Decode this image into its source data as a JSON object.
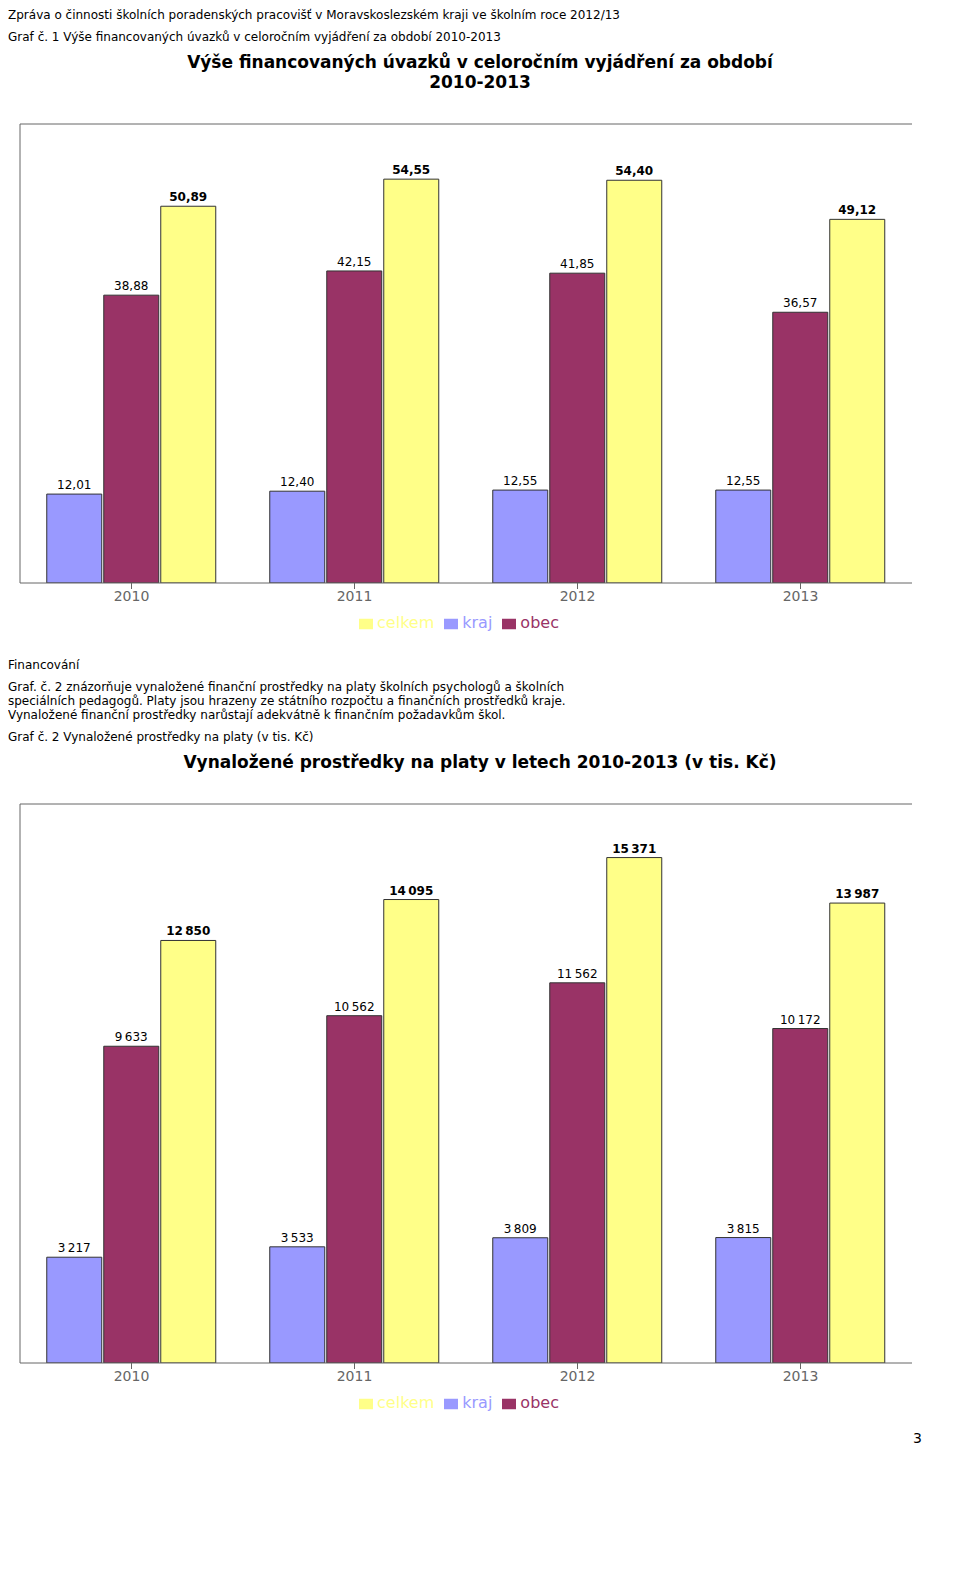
{
  "chart_data": [
    {
      "type": "bar",
      "title": "Výše financovaných úvazků v celoročním vyjádření za období\n2010-2013",
      "annotations": [
        "Zpráva o činnosti školních poradenských pracovišť v Moravskoslezském kraji ve školním roce 2012/13",
        "Graf č. 1 Výše financovaných úvazků v celoročním vyjádření za období 2010-2013"
      ],
      "categories": [
        "2010",
        "2011",
        "2012",
        "2013"
      ],
      "series": [
        {
          "name": "kraj",
          "color": "#9999FF",
          "values": [
            12.01,
            12.4,
            12.55,
            12.55
          ],
          "value_labels": [
            "12,01",
            "12,40",
            "12,55",
            "12,55"
          ]
        },
        {
          "name": "obec",
          "color": "#993366",
          "values": [
            38.88,
            42.15,
            41.85,
            36.57
          ],
          "value_labels": [
            "38,88",
            "42,15",
            "41,85",
            "36,57"
          ]
        },
        {
          "name": "celkem",
          "color": "#FFFF88",
          "values": [
            50.89,
            54.55,
            54.4,
            49.12
          ],
          "value_labels": [
            "50,89",
            "54,55",
            "54,40",
            "49,12"
          ]
        }
      ],
      "ylim": [
        0,
        62
      ],
      "data_labels": true,
      "tick_labels": "x",
      "legend": "bottom",
      "grid": false
    },
    {
      "type": "bar",
      "title": "Vynaložené prostředky na platy v letech 2010-2013 (v tis. Kč)",
      "annotations": [
        "Financování",
        "Graf. č. 2 znázorňuje vynaložené finanční prostředky na platy školních psychologů a školních\nspeciálních pedagogů. Platy jsou hrazeny ze státního rozpočtu a finančních prostředků kraje.\nVynaložené finanční prostředky narůstají adekvátně k finančním požadavkům škol.",
        "Graf č. 2 Vynaložené prostředky na platy (v tis. Kč)",
        "3"
      ],
      "categories": [
        "2010",
        "2011",
        "2012",
        "2013"
      ],
      "series": [
        {
          "name": "kraj",
          "color": "#9999FF",
          "values": [
            3217,
            3533,
            3809,
            3815
          ],
          "value_labels": [
            "3 217",
            "3 533",
            "3 809",
            "3 815"
          ]
        },
        {
          "name": "obec",
          "color": "#993366",
          "values": [
            9633,
            10562,
            11562,
            10172
          ],
          "value_labels": [
            "9 633",
            "10 562",
            "11 562",
            "10 172"
          ]
        },
        {
          "name": "celkem",
          "color": "#FFFF88",
          "values": [
            12850,
            14095,
            15371,
            13987
          ],
          "value_labels": [
            "12 850",
            "14 095",
            "15 371",
            "13 987"
          ]
        }
      ],
      "ylim": [
        0,
        17000
      ],
      "data_labels": true,
      "tick_labels": "x",
      "legend": "bottom",
      "grid": false
    }
  ]
}
